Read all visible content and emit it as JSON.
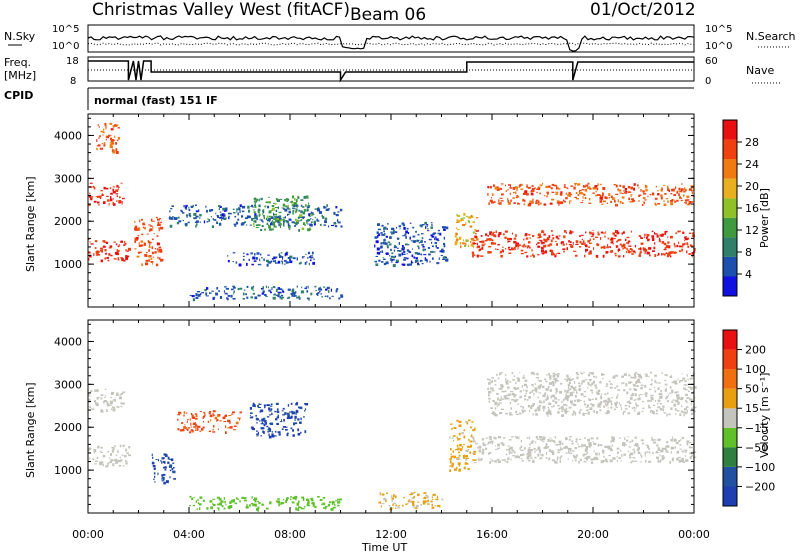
{
  "header": {
    "radar": "Christmas Valley West (fitACF)",
    "beam": "Beam 06",
    "date": "01/Oct/2012"
  },
  "strip": {
    "nsky_label": "N.Sky",
    "nsearch_label": "N.Search",
    "freq_label_1": "Freq.",
    "freq_label_2": "[MHz]",
    "nave_label": "Nave",
    "cpid_label": "CPID",
    "cpid_value": "normal (fast) 151 IF",
    "nsky_ticks": [
      "10^5",
      "10^0"
    ],
    "nsearch_ticks": [
      "10^5",
      "10^0"
    ],
    "freq_ticks": [
      "18",
      "8"
    ],
    "nave_ticks": [
      "60",
      "0"
    ]
  },
  "colors": {
    "power_scale": [
      "#1010e0",
      "#1d4fae",
      "#2f7f6a",
      "#3f9a3e",
      "#8fc028",
      "#e8b020",
      "#f07a10",
      "#f04010",
      "#e81010"
    ],
    "velocity_scale": [
      "#1d3fb0",
      "#2050a0",
      "#2f8040",
      "#5fc02a",
      "#c4c4bc",
      "#e8a010",
      "#f07010",
      "#f04010",
      "#e81010"
    ]
  },
  "chart_data": [
    {
      "type": "heatmap",
      "name": "power",
      "xlabel": "Time UT",
      "ylabel": "Slant Range [km]",
      "xlim": [
        0,
        24
      ],
      "ylim": [
        0,
        4500
      ],
      "x_ticks": [
        "00:00",
        "04:00",
        "08:00",
        "12:00",
        "16:00",
        "20:00",
        "00:00"
      ],
      "y_ticks": [
        "1000",
        "2000",
        "3000",
        "4000"
      ],
      "colorbar": {
        "label": "Power [dB]",
        "range": [
          0,
          32
        ],
        "ticks": [
          "4",
          "8",
          "12",
          "16",
          "20",
          "24",
          "28"
        ]
      },
      "regions": [
        {
          "t": [
            0.0,
            1.6
          ],
          "r": [
            1100,
            1600
          ],
          "value": 28
        },
        {
          "t": [
            0.0,
            1.4
          ],
          "r": [
            2400,
            2900
          ],
          "value": 28
        },
        {
          "t": [
            0.3,
            1.2
          ],
          "r": [
            3600,
            4300
          ],
          "value": 26
        },
        {
          "t": [
            1.8,
            2.9
          ],
          "r": [
            1000,
            2100
          ],
          "value": 26
        },
        {
          "t": [
            3.2,
            10.0
          ],
          "r": [
            1900,
            2400
          ],
          "value": 6
        },
        {
          "t": [
            6.5,
            8.8
          ],
          "r": [
            1800,
            2600
          ],
          "value": 12
        },
        {
          "t": [
            5.5,
            9.0
          ],
          "r": [
            1000,
            1300
          ],
          "value": 5
        },
        {
          "t": [
            4.0,
            10.0
          ],
          "r": [
            200,
            500
          ],
          "value": 6
        },
        {
          "t": [
            11.3,
            14.2
          ],
          "r": [
            1000,
            2000
          ],
          "value": 5
        },
        {
          "t": [
            14.5,
            15.4
          ],
          "r": [
            1400,
            2200
          ],
          "value": 20
        },
        {
          "t": [
            15.2,
            24.0
          ],
          "r": [
            1200,
            1800
          ],
          "value": 28
        },
        {
          "t": [
            15.8,
            24.0
          ],
          "r": [
            2400,
            2900
          ],
          "value": 26
        }
      ]
    },
    {
      "type": "heatmap",
      "name": "velocity",
      "xlabel": "Time UT",
      "ylabel": "Slant Range [km]",
      "xlim": [
        0,
        24
      ],
      "ylim": [
        0,
        4500
      ],
      "x_ticks": [
        "00:00",
        "04:00",
        "08:00",
        "12:00",
        "16:00",
        "20:00",
        "00:00"
      ],
      "y_ticks": [
        "1000",
        "2000",
        "3000",
        "4000"
      ],
      "colorbar": {
        "label": "Velocity [m s⁻¹]",
        "range": [
          -250,
          250
        ],
        "ticks": [
          "200",
          "100",
          "50",
          "15",
          "−15",
          "−50",
          "−100",
          "−200"
        ]
      },
      "regions": [
        {
          "t": [
            0.0,
            1.6
          ],
          "r": [
            1100,
            1600
          ],
          "value": -5
        },
        {
          "t": [
            0.0,
            1.4
          ],
          "r": [
            2400,
            2900
          ],
          "value": -5
        },
        {
          "t": [
            2.5,
            3.4
          ],
          "r": [
            700,
            1400
          ],
          "value": -200
        },
        {
          "t": [
            6.4,
            8.6
          ],
          "r": [
            1800,
            2600
          ],
          "value": -200
        },
        {
          "t": [
            3.5,
            6.0
          ],
          "r": [
            1900,
            2400
          ],
          "value": 150
        },
        {
          "t": [
            4.0,
            10.0
          ],
          "r": [
            100,
            400
          ],
          "value": -60
        },
        {
          "t": [
            11.5,
            14.0
          ],
          "r": [
            100,
            500
          ],
          "value": 40
        },
        {
          "t": [
            14.3,
            15.3
          ],
          "r": [
            1000,
            2200
          ],
          "value": 40
        },
        {
          "t": [
            15.2,
            24.0
          ],
          "r": [
            1200,
            1800
          ],
          "value": -5
        },
        {
          "t": [
            15.8,
            24.0
          ],
          "r": [
            2300,
            3300
          ],
          "value": -5
        }
      ]
    }
  ]
}
